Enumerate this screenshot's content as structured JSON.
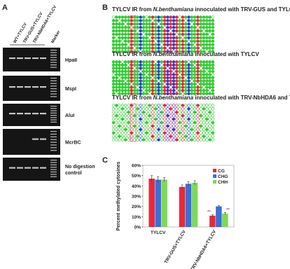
{
  "panel_labels": [
    "A",
    "B",
    "C"
  ],
  "panel_a": {
    "lanes": [
      "WT+TYLCV",
      "TRV-GUS+TYLCV",
      "TRV-NbHDA6+TYLCV",
      "Marker"
    ],
    "gels": [
      [
        "HpaII"
      ],
      [
        "MspI"
      ],
      [
        "AluI"
      ],
      [
        "McrBC"
      ],
      [
        "No digestion",
        "control"
      ]
    ]
  },
  "panel_b": {
    "titles": [
      {
        "prefix": "TYLCV IR from ",
        "species": "N.benthamiana",
        "suffix": " innoculated with TRV-GUS and TYLCV"
      },
      {
        "prefix": "TYLCV IR from ",
        "species": "N.benthamiana",
        "suffix": " innoculated with TYLCV"
      },
      {
        "prefix": "TYLCV IR from ",
        "species": "N.benthamiana",
        "suffix": " innoculated with TRV-NbHDA6 and TYLCV"
      }
    ]
  },
  "chart_data": {
    "type": "bar",
    "y_label": "Percent methylated cytosines",
    "categories": [
      "TYLCV",
      "TRV-GUS+TYLCV",
      "TRV-NbHDA6+TYLCV"
    ],
    "series": [
      {
        "name": "CG",
        "color": "#e8283a",
        "values": [
          47,
          39,
          11
        ],
        "errors": [
          3,
          2,
          1
        ]
      },
      {
        "name": "CHG",
        "color": "#3b6fd8",
        "values": [
          46,
          42,
          20
        ],
        "errors": [
          3,
          2,
          1
        ]
      },
      {
        "name": "CHH",
        "color": "#7ed957",
        "values": [
          46,
          43,
          13
        ],
        "errors": [
          2,
          2,
          1
        ]
      }
    ],
    "annotations": [
      {
        "category": 2,
        "text": "**"
      },
      {
        "category": 2,
        "text": "**"
      }
    ],
    "ylim": [
      0,
      60
    ],
    "yticks": [
      {
        "value": 0,
        "label": "0%"
      },
      {
        "value": 10,
        "label": "10%"
      },
      {
        "value": 20,
        "label": "20%"
      },
      {
        "value": 30,
        "label": "30%"
      },
      {
        "value": 40,
        "label": "40%"
      },
      {
        "value": 50,
        "label": "50%"
      },
      {
        "value": 60,
        "label": "60%"
      }
    ],
    "legend": "upper right"
  }
}
